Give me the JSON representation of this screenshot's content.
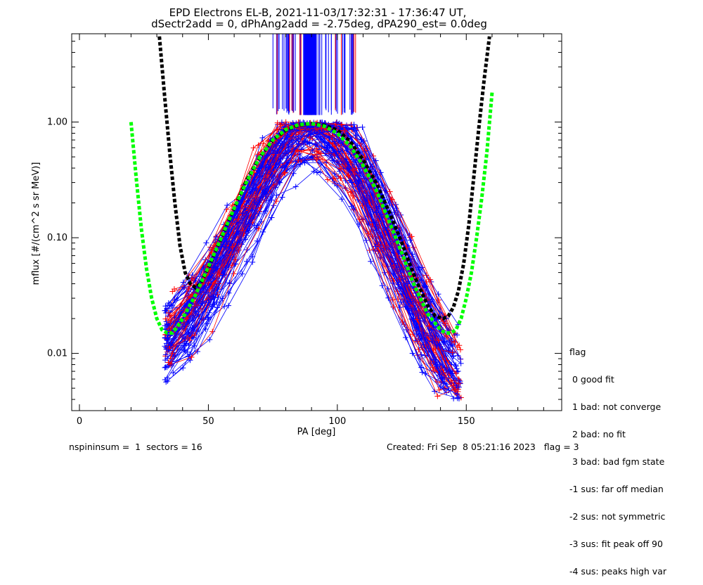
{
  "chart_data": {
    "type": "line",
    "title": "EPD Electrons EL-B, 2021-11-03/17:32:31 - 17:36:47 UT,",
    "subtitle": "dSectr2add = 0, dPhAng2add = -2.75deg, dPA290_est=   0.0deg",
    "xlabel": "PA [deg]",
    "ylabel": "mflux [#/(cm^2 s sr MeV)]",
    "xlim": [
      -3,
      187
    ],
    "ylim": [
      0.0032,
      5.8
    ],
    "yscale": "log",
    "xticks": [
      "0",
      "50",
      "100",
      "150"
    ],
    "yticks": [
      "0.01",
      "0.10",
      "1.00"
    ],
    "grid": false,
    "series": [
      {
        "color": "#000000",
        "style": "dashed-thick",
        "x": [
          31,
          33,
          35,
          37,
          39,
          41,
          43,
          45,
          47,
          50,
          55,
          60,
          65,
          70,
          75,
          80,
          85,
          90,
          95,
          100,
          105,
          110,
          115,
          120,
          125,
          130,
          135,
          138,
          141,
          143,
          145,
          147,
          149,
          151,
          153,
          155,
          157,
          159
        ],
        "y": [
          5.5,
          1.7,
          0.55,
          0.2,
          0.085,
          0.05,
          0.04,
          0.037,
          0.04,
          0.055,
          0.1,
          0.18,
          0.32,
          0.5,
          0.7,
          0.85,
          0.94,
          0.97,
          0.94,
          0.85,
          0.68,
          0.47,
          0.3,
          0.17,
          0.09,
          0.046,
          0.026,
          0.021,
          0.02,
          0.021,
          0.025,
          0.035,
          0.06,
          0.13,
          0.35,
          0.95,
          2.4,
          5.5
        ]
      },
      {
        "color": "#00ff00",
        "style": "dashed-thick",
        "x": [
          20,
          22,
          24,
          26,
          28,
          30,
          32,
          34,
          36,
          38,
          40,
          45,
          50,
          55,
          60,
          65,
          70,
          75,
          80,
          85,
          90,
          95,
          100,
          105,
          110,
          115,
          120,
          125,
          130,
          135,
          140,
          142,
          144,
          146,
          148,
          150,
          152,
          154,
          156,
          158,
          160
        ],
        "y": [
          1.0,
          0.33,
          0.12,
          0.054,
          0.03,
          0.02,
          0.016,
          0.015,
          0.015,
          0.017,
          0.02,
          0.032,
          0.056,
          0.1,
          0.18,
          0.31,
          0.5,
          0.7,
          0.86,
          0.95,
          0.97,
          0.92,
          0.8,
          0.62,
          0.42,
          0.26,
          0.14,
          0.074,
          0.038,
          0.022,
          0.016,
          0.015,
          0.015,
          0.016,
          0.02,
          0.03,
          0.05,
          0.1,
          0.22,
          0.55,
          1.8
        ]
      }
    ],
    "measurements": {
      "note": "approximate envelope of the many red/blue per-sector measurement traces",
      "blue_color": "#0000ff",
      "red_color": "#ff0000",
      "pa_bins": [
        34,
        38,
        42,
        46,
        50,
        54,
        58,
        62,
        66,
        70,
        74,
        78,
        82,
        86,
        90,
        94,
        98,
        102,
        106,
        110,
        114,
        118,
        122,
        126,
        130,
        134,
        138,
        142,
        146,
        148
      ],
      "median": [
        0.012,
        0.015,
        0.02,
        0.027,
        0.037,
        0.055,
        0.08,
        0.12,
        0.18,
        0.26,
        0.38,
        0.55,
        0.72,
        0.86,
        0.92,
        0.88,
        0.78,
        0.62,
        0.45,
        0.3,
        0.19,
        0.12,
        0.075,
        0.045,
        0.028,
        0.018,
        0.012,
        0.009,
        0.007,
        0.006
      ],
      "spike_region": [
        75,
        108
      ]
    }
  },
  "legend": {
    "lines": [
      "flag",
      " 0 good fit",
      " 1 bad: not converge",
      " 2 bad: no fit",
      " 3 bad: bad fgm state",
      "-1 sus: far off median",
      "-2 sus: not symmetric",
      "-3 sus: fit peak off 90",
      "-4 sus: peaks high var"
    ]
  },
  "footer": {
    "left": "nspininsum =  1  sectors = 16",
    "right": "Created: Fri Sep  8 05:21:16 2023   flag = 3"
  }
}
